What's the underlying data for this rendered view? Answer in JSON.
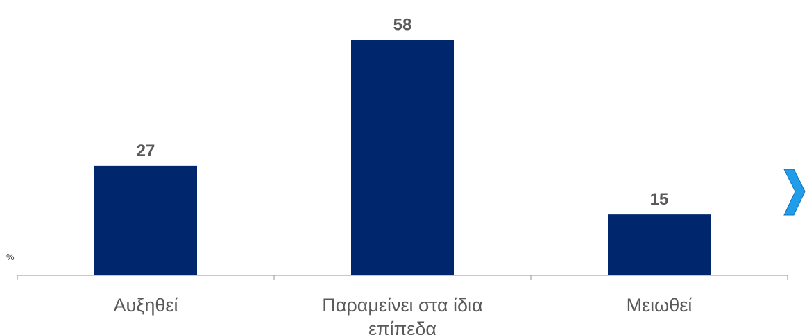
{
  "chart_data": {
    "type": "bar",
    "categories": [
      "Αυξηθεί",
      "Παραμείνει στα ίδια επίπεδα",
      "Μειωθεί"
    ],
    "category_lines": [
      [
        "Αυξηθεί"
      ],
      [
        "Παραμείνει στα ίδια",
        "επίπεδα"
      ],
      [
        "Μειωθεί"
      ]
    ],
    "values": [
      27,
      58,
      15
    ],
    "unit": "%",
    "ylim": [
      0,
      63
    ],
    "grid": false,
    "legend": "none",
    "bar_color": "#00266E",
    "axis_color": "#A6A6A6",
    "label_color": "#595959"
  },
  "nav": {
    "icon": "chevron-right-icon",
    "color": "#1F9DE8"
  }
}
